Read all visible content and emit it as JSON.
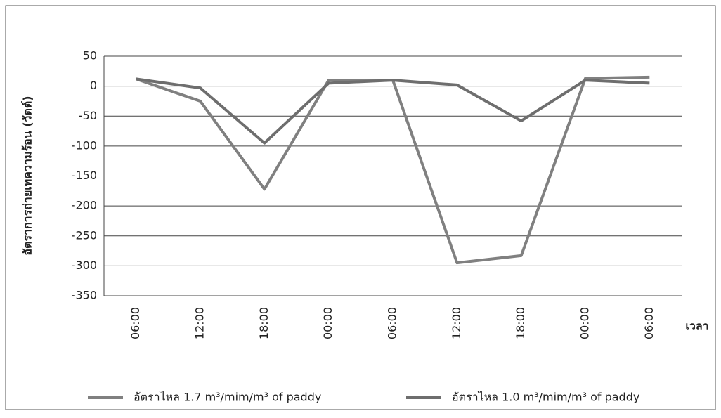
{
  "chart_data": {
    "type": "line",
    "y_label": "อัตราการถ่ายเทความร้อน (วัตต์)",
    "x_label": "เวลา",
    "categories": [
      "06:00",
      "12:00",
      "18:00",
      "00:00",
      "06:00",
      "12:00",
      "18:00",
      "00:00",
      "06:00"
    ],
    "series": [
      {
        "name": "อัตราไหล 1.7 m³/mim/m³ of paddy",
        "color": "#808080",
        "values": [
          12,
          -25,
          -172,
          10,
          10,
          -295,
          -283,
          13,
          15
        ]
      },
      {
        "name": "อัตราไหล 1.0 m³/mim/m³ of paddy",
        "color": "#6e6e6e",
        "values": [
          12,
          -3,
          -95,
          5,
          10,
          2,
          -58,
          10,
          5
        ]
      }
    ],
    "ylim": [
      -350,
      50
    ],
    "yticks": [
      -350,
      -300,
      -250,
      -200,
      -150,
      -100,
      -50,
      0,
      50
    ],
    "grid": true,
    "legend": "bottom"
  }
}
